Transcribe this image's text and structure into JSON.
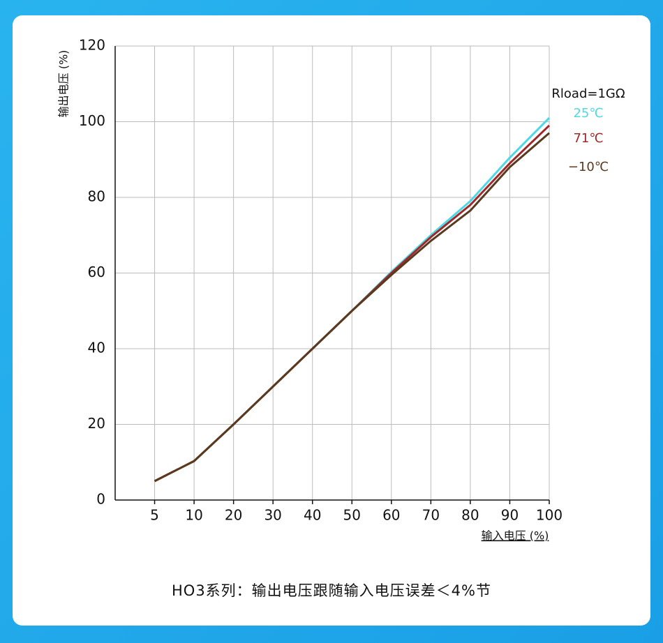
{
  "chart_data": {
    "type": "line",
    "categories": [
      5,
      10,
      20,
      30,
      40,
      50,
      60,
      70,
      80,
      90,
      100
    ],
    "series": [
      {
        "name": "25℃",
        "color": "#4dd8e6",
        "values": [
          5,
          10.3,
          20,
          30,
          40,
          50,
          60.3,
          70,
          79,
          90.5,
          101
        ]
      },
      {
        "name": "71℃",
        "color": "#a0282a",
        "values": [
          5,
          10.3,
          20,
          30,
          40,
          50,
          60,
          69.5,
          78,
          89,
          99
        ]
      },
      {
        "name": "−10℃",
        "color": "#5a3a1e",
        "values": [
          5,
          10.3,
          20,
          30,
          40,
          50,
          59.5,
          68.5,
          76.5,
          88,
          97
        ]
      }
    ],
    "legend_title": "Rload=1GΩ",
    "ylim": [
      0,
      120
    ],
    "yticks": [
      0,
      20,
      40,
      60,
      80,
      100,
      120
    ],
    "x_label": "输入电压 (%)",
    "y_label": "输出电压 (%)",
    "grid": true,
    "caption": "HO3系列：输出电压跟随输入电压误差＜4%节"
  }
}
